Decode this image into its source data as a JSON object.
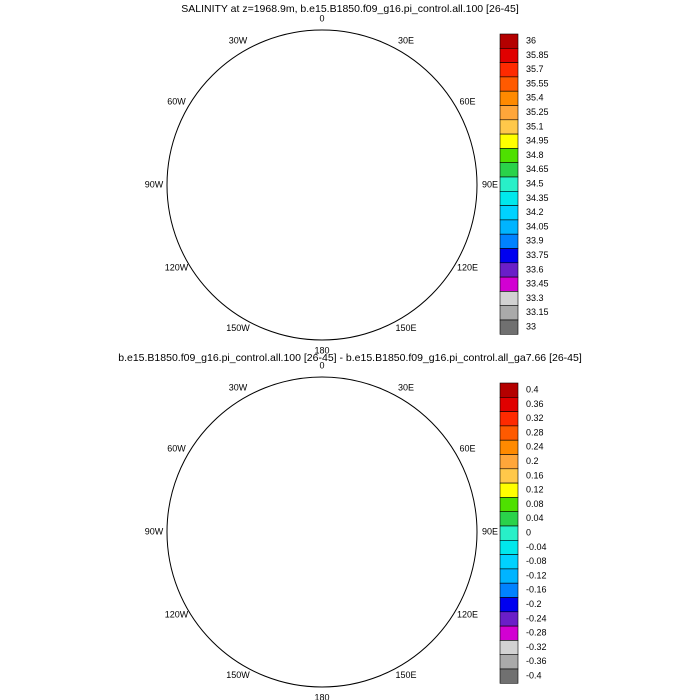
{
  "maps": [
    {
      "title": "SALINITY at z=1968.9m, b.e15.B1850.f09_g16.pi_control.all.100 [26-45]",
      "lon_labels": [
        "0",
        "30E",
        "60E",
        "90E",
        "120E",
        "150E",
        "180",
        "150W",
        "120W",
        "90W",
        "60W",
        "30W"
      ],
      "colorbar": {
        "labels": [
          36,
          35.85,
          35.7,
          35.55,
          35.4,
          35.25,
          35.1,
          34.95,
          34.8,
          34.65,
          34.5,
          34.35,
          34.2,
          34.05,
          33.9,
          33.75,
          33.6,
          33.45,
          33.3,
          33.15,
          33
        ],
        "colors": [
          "#b40000",
          "#e00000",
          "#ff2a00",
          "#ff5a00",
          "#ff8a00",
          "#ffa63a",
          "#ffc84a",
          "#ffff00",
          "#4ee000",
          "#2ad24a",
          "#28f0c8",
          "#00e8ec",
          "#00d2ff",
          "#00b4ff",
          "#0082ff",
          "#0000f0",
          "#6a1ec8",
          "#d200d2",
          "#d2d2d2",
          "#aaaaaa",
          "#707070"
        ]
      }
    },
    {
      "title": "b.e15.B1850.f09_g16.pi_control.all.100 [26-45] - b.e15.B1850.f09_g16.pi_control.all_ga7.66 [26-45]",
      "lon_labels": [
        "0",
        "30E",
        "60E",
        "90E",
        "120E",
        "150E",
        "180",
        "150W",
        "120W",
        "90W",
        "60W",
        "30W"
      ],
      "colorbar": {
        "labels": [
          0.4,
          0.36,
          0.32,
          0.28,
          0.24,
          0.2,
          0.16,
          0.12,
          0.08,
          0.04,
          0,
          -0.04,
          -0.08,
          -0.12,
          -0.16,
          -0.2,
          -0.24,
          -0.28,
          -0.32,
          -0.36,
          -0.4
        ],
        "colors": [
          "#b40000",
          "#e00000",
          "#ff2a00",
          "#ff5a00",
          "#ff8a00",
          "#ffa63a",
          "#ffc84a",
          "#ffff00",
          "#4ee000",
          "#2ad24a",
          "#28f0c8",
          "#00e8ec",
          "#00d2ff",
          "#00b4ff",
          "#0082ff",
          "#0000f0",
          "#6a1ec8",
          "#d200d2",
          "#d2d2d2",
          "#aaaaaa",
          "#707070"
        ]
      }
    }
  ]
}
